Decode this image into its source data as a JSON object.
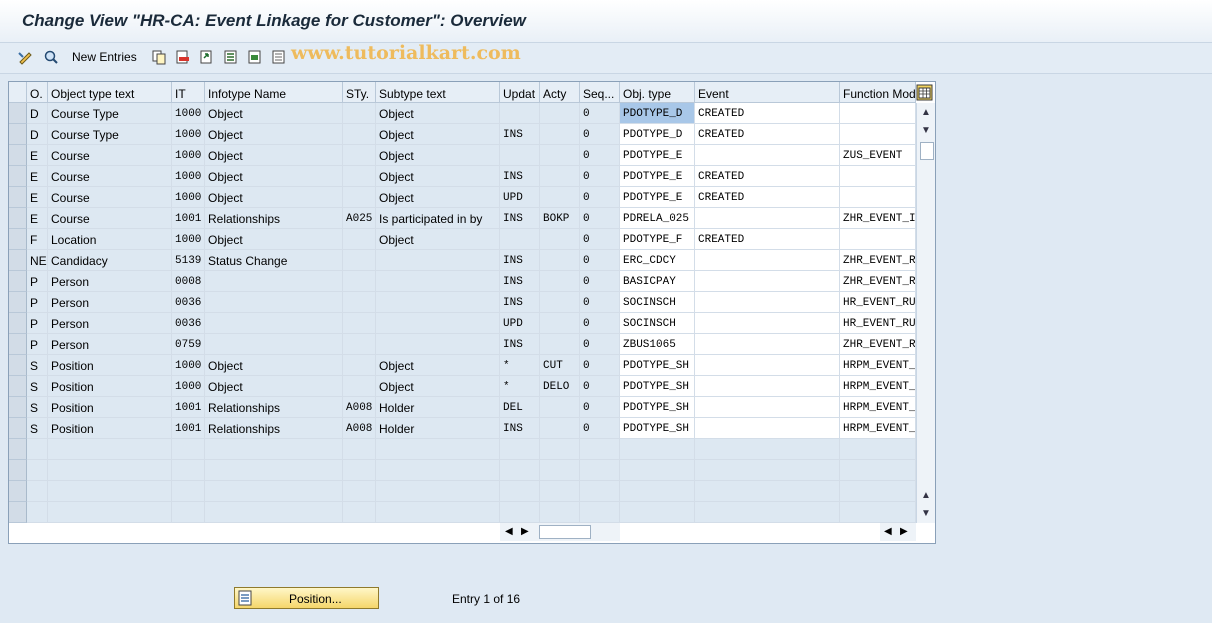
{
  "window": {
    "title": "Change View \"HR-CA: Event Linkage for Customer\": Overview"
  },
  "toolbar": {
    "new_entries_label": "New Entries",
    "icons": [
      "change-display-icon",
      "details-icon",
      "copy-icon",
      "delete-icon",
      "undo-icon",
      "select-all-icon",
      "select-block-icon",
      "deselect-all-icon"
    ]
  },
  "watermark": "www.tutorialkart.com",
  "table": {
    "columns": [
      "O.",
      "Object type text",
      "IT",
      "Infotype Name",
      "STy.",
      "Subtype text",
      "Updat",
      "Acty",
      "Seq...",
      "Obj. type",
      "Event",
      "Function Mod"
    ],
    "rows": [
      [
        "D",
        "Course Type",
        "1000",
        "Object",
        "",
        "Object",
        "",
        "",
        "0",
        "PDOTYPE_D",
        "CREATED",
        ""
      ],
      [
        "D",
        "Course Type",
        "1000",
        "Object",
        "",
        "Object",
        "INS",
        "",
        "0",
        "PDOTYPE_D",
        "CREATED",
        ""
      ],
      [
        "E",
        "Course",
        "1000",
        "Object",
        "",
        "Object",
        "",
        "",
        "0",
        "PDOTYPE_E",
        "",
        "ZUS_EVENT"
      ],
      [
        "E",
        "Course",
        "1000",
        "Object",
        "",
        "Object",
        "INS",
        "",
        "0",
        "PDOTYPE_E",
        "CREATED",
        ""
      ],
      [
        "E",
        "Course",
        "1000",
        "Object",
        "",
        "Object",
        "UPD",
        "",
        "0",
        "PDOTYPE_E",
        "CREATED",
        ""
      ],
      [
        "E",
        "Course",
        "1001",
        "Relationships",
        "A025",
        "Is participated in by",
        "INS",
        "BOKP",
        "0",
        "PDRELA_025",
        "",
        "ZHR_EVENT_I"
      ],
      [
        "F",
        "Location",
        "1000",
        "Object",
        "",
        "Object",
        "",
        "",
        "0",
        "PDOTYPE_F",
        "CREATED",
        ""
      ],
      [
        "NE",
        "Candidacy",
        "5139",
        "Status Change",
        "",
        "",
        "INS",
        "",
        "0",
        "ERC_CDCY",
        "",
        "ZHR_EVENT_R"
      ],
      [
        "P",
        "Person",
        "0008",
        "",
        "",
        "",
        "INS",
        "",
        "0",
        "BASICPAY",
        "",
        "ZHR_EVENT_R"
      ],
      [
        "P",
        "Person",
        "0036",
        "",
        "",
        "",
        "INS",
        "",
        "0",
        "SOCINSCH",
        "",
        "HR_EVENT_RU"
      ],
      [
        "P",
        "Person",
        "0036",
        "",
        "",
        "",
        "UPD",
        "",
        "0",
        "SOCINSCH",
        "",
        "HR_EVENT_RU"
      ],
      [
        "P",
        "Person",
        "0759",
        "",
        "",
        "",
        "INS",
        "",
        "0",
        "ZBUS1065",
        "",
        "ZHR_EVENT_R"
      ],
      [
        "S",
        "Position",
        "1000",
        "Object",
        "",
        "Object",
        "*",
        "CUT",
        "0",
        "PDOTYPE_SH",
        "",
        "HRPM_EVENT_"
      ],
      [
        "S",
        "Position",
        "1000",
        "Object",
        "",
        "Object",
        "*",
        "DELO",
        "0",
        "PDOTYPE_SH",
        "",
        "HRPM_EVENT_"
      ],
      [
        "S",
        "Position",
        "1001",
        "Relationships",
        "A008",
        "Holder",
        "DEL",
        "",
        "0",
        "PDOTYPE_SH",
        "",
        "HRPM_EVENT_"
      ],
      [
        "S",
        "Position",
        "1001",
        "Relationships",
        "A008",
        "Holder",
        "INS",
        "",
        "0",
        "PDOTYPE_SH",
        "",
        "HRPM_EVENT_"
      ]
    ],
    "empty_rows": 4
  },
  "footer": {
    "position_button_label": "Position...",
    "entry_text": "Entry 1 of 16"
  },
  "colors": {
    "readonly_cell": "#dde8f2",
    "editable_cell": "#ffffff",
    "selected_cell": "#a8c7e8"
  }
}
